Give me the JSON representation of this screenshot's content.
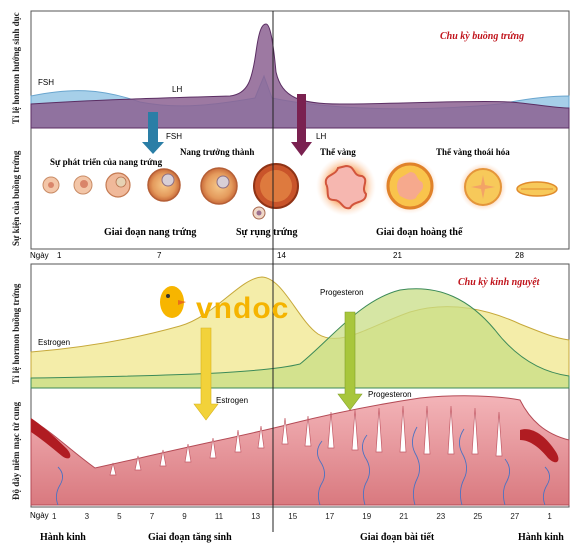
{
  "top_panel": {
    "title": "Chu kỳ buồng trứng",
    "y_label_hormone": "Tỉ lệ hormon hướng sinh dục",
    "y_label_events": "Sự kiện của buồng trứng",
    "fsh_curve_label": "FSH",
    "lh_curve_label": "LH",
    "fsh_arrow_label": "FSH",
    "lh_arrow_label": "LH",
    "events": {
      "follicle_growth": "Sự phát triển của nang trứng",
      "mature_follicle": "Nang trưởng thành",
      "corpus_luteum": "Thể vàng",
      "degenerating_corpus": "Thể vàng thoái hóa"
    },
    "phases": {
      "follicular": "Giai đoạn nang trứng",
      "ovulation": "Sự rụng trứng",
      "luteal": "Giai đoạn hoàng thể"
    },
    "day_row": {
      "label": "Ngày",
      "ticks": [
        "1",
        "7",
        "14",
        "21",
        "28"
      ]
    }
  },
  "bottom_panel": {
    "title": "Chu kỳ kinh nguyệt",
    "y_label_hormone": "Tỉ lệ hormon buồng trứng",
    "y_label_endometrium": "Độ dày niêm mạc tử cung",
    "estrogen_curve_label": "Estrogen",
    "progesterone_curve_label": "Progesteron",
    "estrogen_arrow_label": "Estrogen",
    "progesterone_arrow_label": "Progesteron",
    "day_row": {
      "label": "Ngày",
      "ticks": [
        "1",
        "3",
        "5",
        "7",
        "9",
        "11",
        "13",
        "15",
        "17",
        "19",
        "21",
        "23",
        "25",
        "27",
        "1"
      ]
    },
    "phases": {
      "menstruation_start": "Hành kinh",
      "proliferative": "Giai đoạn tăng sinh",
      "secretory": "Giai đoạn bài tiết",
      "menstruation_end": "Hành kinh"
    }
  },
  "watermark": "vndoc",
  "colors": {
    "fsh": "#9fc9e6",
    "lh": "#8a5d90",
    "estrogen": "#e0cf6a",
    "progesterone": "#c8dd86",
    "endometrium": "#e79aa1",
    "title_red": "#c0141c",
    "fsh_arrow": "#2a7ea6",
    "lh_arrow": "#7a2150",
    "estrogen_arrow": "#f2d23a",
    "progesterone_arrow": "#a8c63c",
    "watermark": "#f5b400"
  }
}
